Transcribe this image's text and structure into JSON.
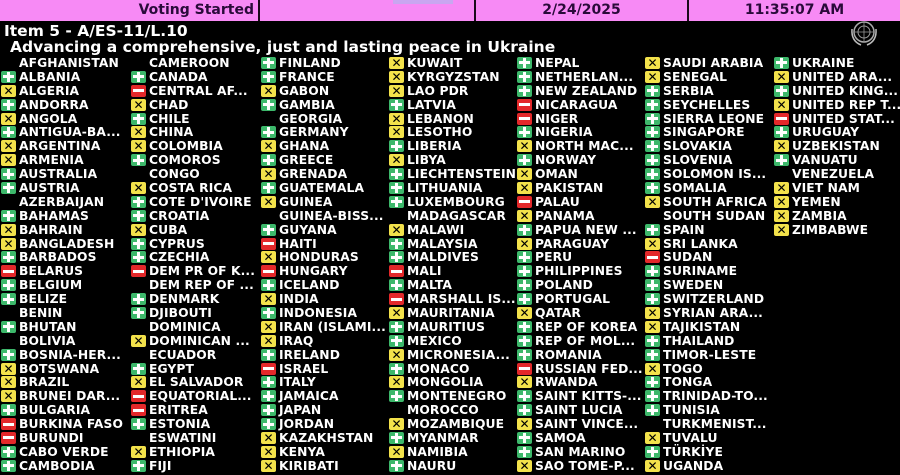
{
  "header": {
    "status": "Voting Started",
    "date": "2/24/2025",
    "time": "11:35:07 AM"
  },
  "item": "Item 5 - A/ES-11/L.10",
  "title": "Advancing a comprehensive, just and lasting peace in Ukraine",
  "colors": {
    "yes": "#3db86b",
    "no": "#e3282a",
    "abstain": "#f3e24b",
    "header_bg": "#f78af5"
  },
  "vote_legend": {
    "Y": "yes (plus-icon)",
    "N": "no (minus-icon)",
    "A": "abstain (x-icon)",
    "": "not voting"
  },
  "columns": [
    [
      [
        "AFGHANISTAN",
        ""
      ],
      [
        "ALBANIA",
        "Y"
      ],
      [
        "ALGERIA",
        "A"
      ],
      [
        "ANDORRA",
        "Y"
      ],
      [
        "ANGOLA",
        "A"
      ],
      [
        "ANTIGUA-BA...",
        "Y"
      ],
      [
        "ARGENTINA",
        "A"
      ],
      [
        "ARMENIA",
        "A"
      ],
      [
        "AUSTRALIA",
        "Y"
      ],
      [
        "AUSTRIA",
        "Y"
      ],
      [
        "AZERBAIJAN",
        ""
      ],
      [
        "BAHAMAS",
        "Y"
      ],
      [
        "BAHRAIN",
        "A"
      ],
      [
        "BANGLADESH",
        "A"
      ],
      [
        "BARBADOS",
        "Y"
      ],
      [
        "BELARUS",
        "N"
      ],
      [
        "BELGIUM",
        "Y"
      ],
      [
        "BELIZE",
        "Y"
      ],
      [
        "BENIN",
        ""
      ],
      [
        "BHUTAN",
        "Y"
      ],
      [
        "BOLIVIA",
        ""
      ],
      [
        "BOSNIA-HER...",
        "Y"
      ],
      [
        "BOTSWANA",
        "A"
      ],
      [
        "BRAZIL",
        "A"
      ],
      [
        "BRUNEI DAR...",
        "A"
      ],
      [
        "BULGARIA",
        "Y"
      ],
      [
        "BURKINA FASO",
        "N"
      ],
      [
        "BURUNDI",
        "N"
      ],
      [
        "CABO VERDE",
        "Y"
      ],
      [
        "CAMBODIA",
        "Y"
      ]
    ],
    [
      [
        "CAMEROON",
        ""
      ],
      [
        "CANADA",
        "Y"
      ],
      [
        "CENTRAL AF...",
        "N"
      ],
      [
        "CHAD",
        "A"
      ],
      [
        "CHILE",
        "Y"
      ],
      [
        "CHINA",
        "A"
      ],
      [
        "COLOMBIA",
        "A"
      ],
      [
        "COMOROS",
        "Y"
      ],
      [
        "CONGO",
        ""
      ],
      [
        "COSTA RICA",
        "A"
      ],
      [
        "COTE D'IVOIRE",
        "Y"
      ],
      [
        "CROATIA",
        "Y"
      ],
      [
        "CUBA",
        "A"
      ],
      [
        "CYPRUS",
        "Y"
      ],
      [
        "CZECHIA",
        "Y"
      ],
      [
        "DEM PR OF K...",
        "N"
      ],
      [
        "DEM REP OF ...",
        ""
      ],
      [
        "DENMARK",
        "Y"
      ],
      [
        "DJIBOUTI",
        "Y"
      ],
      [
        "DOMINICA",
        ""
      ],
      [
        "DOMINICAN ...",
        "A"
      ],
      [
        "ECUADOR",
        ""
      ],
      [
        "EGYPT",
        "Y"
      ],
      [
        "EL SALVADOR",
        "A"
      ],
      [
        "EQUATORIAL...",
        "N"
      ],
      [
        "ERITREA",
        "N"
      ],
      [
        "ESTONIA",
        "Y"
      ],
      [
        "ESWATINI",
        ""
      ],
      [
        "ETHIOPIA",
        "A"
      ],
      [
        "FIJI",
        "Y"
      ]
    ],
    [
      [
        "FINLAND",
        "Y"
      ],
      [
        "FRANCE",
        "Y"
      ],
      [
        "GABON",
        "A"
      ],
      [
        "GAMBIA",
        "Y"
      ],
      [
        "GEORGIA",
        ""
      ],
      [
        "GERMANY",
        "Y"
      ],
      [
        "GHANA",
        "A"
      ],
      [
        "GREECE",
        "Y"
      ],
      [
        "GRENADA",
        "A"
      ],
      [
        "GUATEMALA",
        "Y"
      ],
      [
        "GUINEA",
        "A"
      ],
      [
        "GUINEA-BISS...",
        ""
      ],
      [
        "GUYANA",
        "Y"
      ],
      [
        "HAITI",
        "N"
      ],
      [
        "HONDURAS",
        "A"
      ],
      [
        "HUNGARY",
        "N"
      ],
      [
        "ICELAND",
        "Y"
      ],
      [
        "INDIA",
        "A"
      ],
      [
        "INDONESIA",
        "Y"
      ],
      [
        "IRAN (ISLAMI...",
        "A"
      ],
      [
        "IRAQ",
        "A"
      ],
      [
        "IRELAND",
        "Y"
      ],
      [
        "ISRAEL",
        "N"
      ],
      [
        "ITALY",
        "Y"
      ],
      [
        "JAMAICA",
        "Y"
      ],
      [
        "JAPAN",
        "Y"
      ],
      [
        "JORDAN",
        "Y"
      ],
      [
        "KAZAKHSTAN",
        "A"
      ],
      [
        "KENYA",
        "A"
      ],
      [
        "KIRIBATI",
        "A"
      ]
    ],
    [
      [
        "KUWAIT",
        "A"
      ],
      [
        "KYRGYZSTAN",
        "A"
      ],
      [
        "LAO PDR",
        "A"
      ],
      [
        "LATVIA",
        "Y"
      ],
      [
        "LEBANON",
        "A"
      ],
      [
        "LESOTHO",
        "A"
      ],
      [
        "LIBERIA",
        "Y"
      ],
      [
        "LIBYA",
        "A"
      ],
      [
        "LIECHTENSTEIN",
        "Y"
      ],
      [
        "LITHUANIA",
        "Y"
      ],
      [
        "LUXEMBOURG",
        "Y"
      ],
      [
        "MADAGASCAR",
        ""
      ],
      [
        "MALAWI",
        "A"
      ],
      [
        "MALAYSIA",
        "Y"
      ],
      [
        "MALDIVES",
        "Y"
      ],
      [
        "MALI",
        "N"
      ],
      [
        "MALTA",
        "Y"
      ],
      [
        "MARSHALL IS...",
        "N"
      ],
      [
        "MAURITANIA",
        "A"
      ],
      [
        "MAURITIUS",
        "Y"
      ],
      [
        "MEXICO",
        "Y"
      ],
      [
        "MICRONESIA...",
        "A"
      ],
      [
        "MONACO",
        "Y"
      ],
      [
        "MONGOLIA",
        "A"
      ],
      [
        "MONTENEGRO",
        "Y"
      ],
      [
        "MOROCCO",
        ""
      ],
      [
        "MOZAMBIQUE",
        "A"
      ],
      [
        "MYANMAR",
        "Y"
      ],
      [
        "NAMIBIA",
        "A"
      ],
      [
        "NAURU",
        "Y"
      ]
    ],
    [
      [
        "NEPAL",
        "Y"
      ],
      [
        "NETHERLAN...",
        "Y"
      ],
      [
        "NEW ZEALAND",
        "Y"
      ],
      [
        "NICARAGUA",
        "N"
      ],
      [
        "NIGER",
        "N"
      ],
      [
        "NIGERIA",
        "Y"
      ],
      [
        "NORTH MAC...",
        "A"
      ],
      [
        "NORWAY",
        "Y"
      ],
      [
        "OMAN",
        "A"
      ],
      [
        "PAKISTAN",
        "A"
      ],
      [
        "PALAU",
        "N"
      ],
      [
        "PANAMA",
        "A"
      ],
      [
        "PAPUA NEW ...",
        "Y"
      ],
      [
        "PARAGUAY",
        "A"
      ],
      [
        "PERU",
        "Y"
      ],
      [
        "PHILIPPINES",
        "Y"
      ],
      [
        "POLAND",
        "Y"
      ],
      [
        "PORTUGAL",
        "Y"
      ],
      [
        "QATAR",
        "A"
      ],
      [
        "REP OF KOREA",
        "Y"
      ],
      [
        "REP OF MOL...",
        "Y"
      ],
      [
        "ROMANIA",
        "Y"
      ],
      [
        "RUSSIAN FED...",
        "N"
      ],
      [
        "RWANDA",
        "A"
      ],
      [
        "SAINT KITTS-...",
        "Y"
      ],
      [
        "SAINT LUCIA",
        "Y"
      ],
      [
        "SAINT VINCE...",
        "A"
      ],
      [
        "SAMOA",
        "Y"
      ],
      [
        "SAN MARINO",
        "Y"
      ],
      [
        "SAO TOME-P...",
        "A"
      ]
    ],
    [
      [
        "SAUDI ARABIA",
        "A"
      ],
      [
        "SENEGAL",
        "A"
      ],
      [
        "SERBIA",
        "Y"
      ],
      [
        "SEYCHELLES",
        "Y"
      ],
      [
        "SIERRA LEONE",
        "Y"
      ],
      [
        "SINGAPORE",
        "Y"
      ],
      [
        "SLOVAKIA",
        "Y"
      ],
      [
        "SLOVENIA",
        "Y"
      ],
      [
        "SOLOMON IS...",
        "Y"
      ],
      [
        "SOMALIA",
        "Y"
      ],
      [
        "SOUTH AFRICA",
        "A"
      ],
      [
        "SOUTH SUDAN",
        ""
      ],
      [
        "SPAIN",
        "Y"
      ],
      [
        "SRI LANKA",
        "A"
      ],
      [
        "SUDAN",
        "N"
      ],
      [
        "SURINAME",
        "Y"
      ],
      [
        "SWEDEN",
        "Y"
      ],
      [
        "SWITZERLAND",
        "Y"
      ],
      [
        "SYRIAN ARA...",
        "A"
      ],
      [
        "TAJIKISTAN",
        "A"
      ],
      [
        "THAILAND",
        "Y"
      ],
      [
        "TIMOR-LESTE",
        "Y"
      ],
      [
        "TOGO",
        "A"
      ],
      [
        "TONGA",
        "Y"
      ],
      [
        "TRINIDAD-TO...",
        "Y"
      ],
      [
        "TUNISIA",
        "Y"
      ],
      [
        "TURKMENIST...",
        ""
      ],
      [
        "TUVALU",
        "A"
      ],
      [
        "TÜRKİYE",
        "Y"
      ],
      [
        "UGANDA",
        "A"
      ]
    ],
    [
      [
        "UKRAINE",
        "Y"
      ],
      [
        "UNITED ARA...",
        "A"
      ],
      [
        "UNITED KING...",
        "Y"
      ],
      [
        "UNITED REP T...",
        "A"
      ],
      [
        "UNITED STAT...",
        "N"
      ],
      [
        "URUGUAY",
        "Y"
      ],
      [
        "UZBEKISTAN",
        "A"
      ],
      [
        "VANUATU",
        "Y"
      ],
      [
        "VENEZUELA",
        ""
      ],
      [
        "VIET NAM",
        "A"
      ],
      [
        "YEMEN",
        "A"
      ],
      [
        "ZAMBIA",
        "A"
      ],
      [
        "ZIMBABWE",
        "A"
      ]
    ]
  ]
}
